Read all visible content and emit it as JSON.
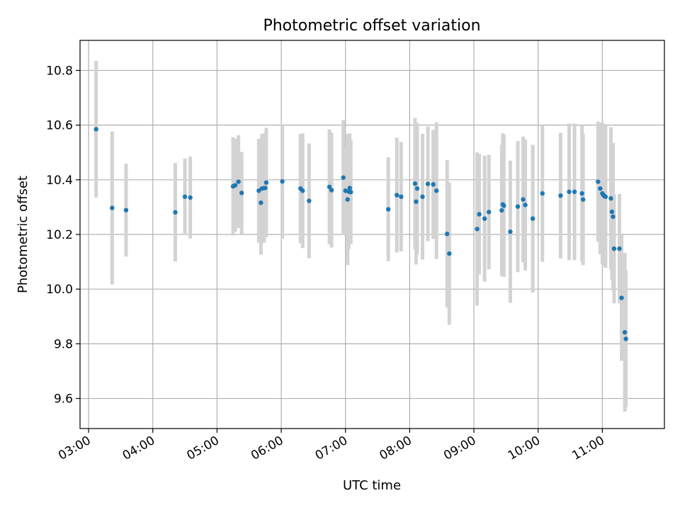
{
  "chart_data": {
    "type": "scatter",
    "title": "Photometric offset variation",
    "xlabel": "UTC time",
    "ylabel": "Photometric offset",
    "xlim": [
      "02:52",
      "11:58"
    ],
    "ylim": [
      9.49,
      10.91
    ],
    "x_ticks": [
      "03:00",
      "04:00",
      "05:00",
      "06:00",
      "07:00",
      "08:00",
      "09:00",
      "10:00",
      "11:00"
    ],
    "y_ticks": [
      9.6,
      9.8,
      10.0,
      10.2,
      10.4,
      10.6,
      10.8
    ],
    "grid": true,
    "colors": {
      "point": "#1f77b4",
      "error_bar": "#d3d3d3",
      "grid": "#b0b0b0"
    },
    "series": [
      {
        "x": [
          "03:07",
          "03:22",
          "03:35",
          "04:21",
          "04:30",
          "04:35",
          "05:15",
          "05:17",
          "05:20",
          "05:23",
          "05:39",
          "05:41",
          "05:42",
          "05:44",
          "05:45",
          "05:46",
          "06:01",
          "06:18",
          "06:20",
          "06:26",
          "06:45",
          "06:47",
          "06:58",
          "07:00",
          "07:02",
          "07:03",
          "07:04",
          "07:05",
          "07:40",
          "07:48",
          "07:52",
          "08:05",
          "08:06",
          "08:07",
          "08:12",
          "08:17",
          "08:22",
          "08:25",
          "08:35",
          "08:37",
          "09:03",
          "09:05",
          "09:10",
          "09:14",
          "09:26",
          "09:27",
          "09:28",
          "09:34",
          "09:41",
          "09:46",
          "09:48",
          "09:55",
          "10:04",
          "10:21",
          "10:29",
          "10:34",
          "10:41",
          "10:42",
          "10:56",
          "10:58",
          "11:00",
          "11:01",
          "11:02",
          "11:03",
          "11:08",
          "11:09",
          "11:10",
          "11:11",
          "11:16",
          "11:18",
          "11:21",
          "11:22"
        ],
        "y": [
          10.585,
          10.297,
          10.289,
          10.281,
          10.338,
          10.335,
          10.376,
          10.38,
          10.393,
          10.352,
          10.36,
          10.316,
          10.368,
          10.37,
          10.37,
          10.39,
          10.394,
          10.368,
          10.36,
          10.323,
          10.374,
          10.362,
          10.408,
          10.36,
          10.328,
          10.357,
          10.37,
          10.355,
          10.292,
          10.344,
          10.338,
          10.386,
          10.32,
          10.368,
          10.338,
          10.385,
          10.383,
          10.36,
          10.202,
          10.13,
          10.22,
          10.274,
          10.258,
          10.282,
          10.288,
          10.31,
          10.305,
          10.21,
          10.302,
          10.328,
          10.308,
          10.258,
          10.35,
          10.342,
          10.356,
          10.356,
          10.35,
          10.328,
          10.393,
          10.368,
          10.35,
          10.344,
          10.34,
          10.338,
          10.332,
          10.283,
          10.265,
          10.148,
          10.148,
          9.968,
          9.842,
          9.818
        ],
        "err": [
          0.25,
          0.28,
          0.17,
          0.18,
          0.14,
          0.15,
          0.18,
          0.17,
          0.17,
          0.15,
          0.19,
          0.19,
          0.2,
          0.2,
          0.18,
          0.2,
          0.21,
          0.2,
          0.21,
          0.21,
          0.21,
          0.21,
          0.21,
          0.16,
          0.24,
          0.21,
          0.2,
          0.19,
          0.19,
          0.21,
          0.2,
          0.24,
          0.23,
          0.24,
          0.23,
          0.21,
          0.2,
          0.25,
          0.27,
          0.26,
          0.28,
          0.22,
          0.23,
          0.21,
          0.24,
          0.26,
          0.26,
          0.26,
          0.24,
          0.23,
          0.24,
          0.27,
          0.25,
          0.23,
          0.25,
          0.25,
          0.25,
          0.24,
          0.22,
          0.24,
          0.26,
          0.26,
          0.25,
          0.26,
          0.26,
          0.25,
          0.27,
          0.2,
          0.2,
          0.23,
          0.29,
          0.25
        ]
      }
    ]
  }
}
